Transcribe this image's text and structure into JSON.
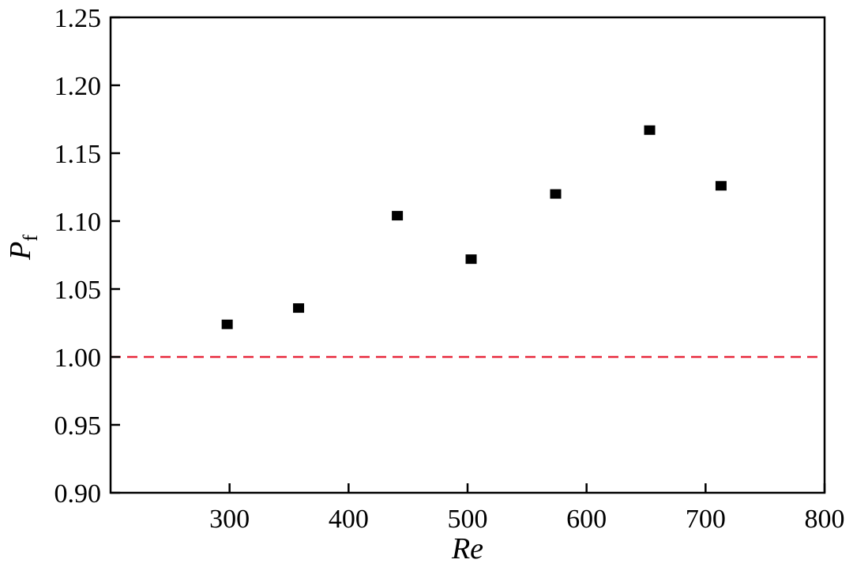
{
  "chart_data": {
    "type": "scatter",
    "xlabel": "Re",
    "ylabel_main": "P",
    "ylabel_sub": "f",
    "xlim": [
      200,
      800
    ],
    "ylim": [
      0.9,
      1.25
    ],
    "xticks": [
      "300",
      "400",
      "500",
      "600",
      "700",
      "800"
    ],
    "yticks": [
      "0.90",
      "0.95",
      "1.00",
      "1.05",
      "1.10",
      "1.15",
      "1.20",
      "1.25"
    ],
    "grid": false,
    "series": [
      {
        "marker": "square",
        "color": "#000000",
        "points": [
          {
            "x": 298,
            "y": 1.024
          },
          {
            "x": 358,
            "y": 1.036
          },
          {
            "x": 441,
            "y": 1.104
          },
          {
            "x": 503,
            "y": 1.072
          },
          {
            "x": 574,
            "y": 1.12
          },
          {
            "x": 653,
            "y": 1.167
          },
          {
            "x": 713,
            "y": 1.126
          }
        ]
      }
    ],
    "reference_lines": [
      {
        "axis": "y",
        "value": 1.0,
        "style": "dashed",
        "color": "#e8283c"
      }
    ]
  }
}
